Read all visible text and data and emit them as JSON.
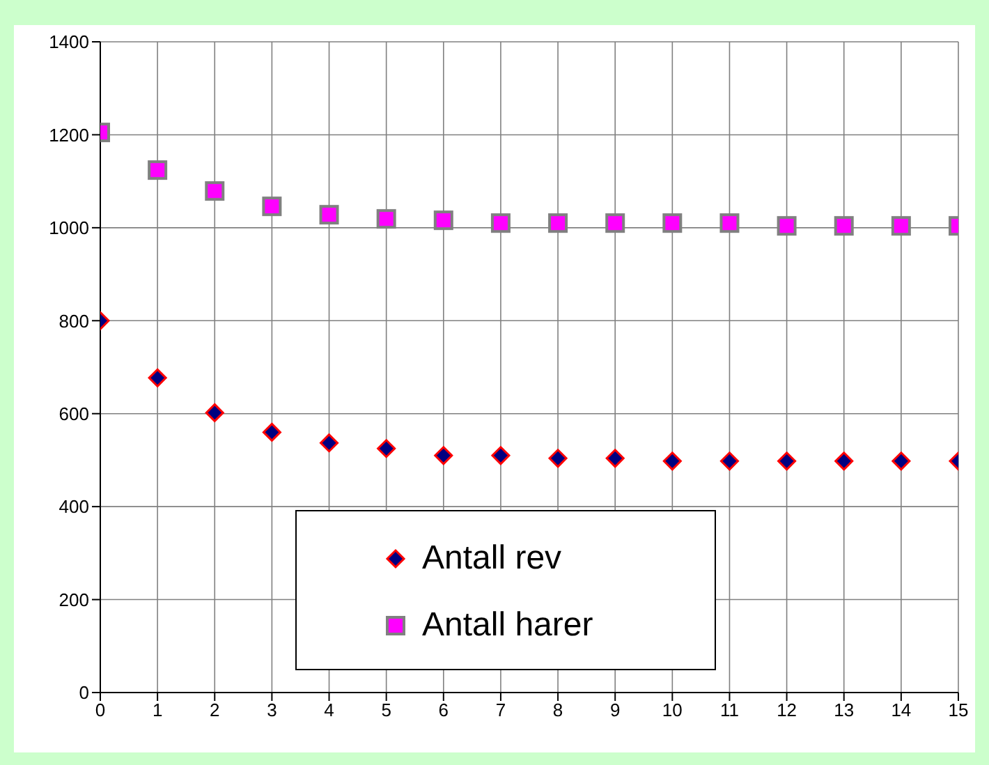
{
  "chart_data": {
    "type": "scatter",
    "x": [
      0,
      1,
      2,
      3,
      4,
      5,
      6,
      7,
      8,
      9,
      10,
      11,
      12,
      13,
      14,
      15
    ],
    "series": [
      {
        "name": "Antall rev",
        "color": "#000080",
        "marker": "diamond",
        "values": [
          800,
          677,
          602,
          560,
          537,
          525,
          510,
          510,
          504,
          504,
          498,
          498,
          498,
          498,
          498,
          498
        ]
      },
      {
        "name": "Antall harer",
        "color": "#ff00ff",
        "marker": "square",
        "values": [
          1205,
          1124,
          1079,
          1046,
          1028,
          1019,
          1016,
          1010,
          1010,
          1010,
          1010,
          1010,
          1004,
          1004,
          1004,
          1004
        ]
      }
    ],
    "xlim": [
      0,
      15
    ],
    "xticks": [
      0,
      1,
      2,
      3,
      4,
      5,
      6,
      7,
      8,
      9,
      10,
      11,
      12,
      13,
      14,
      15
    ],
    "ylim": [
      0,
      1400
    ],
    "yticks": [
      0,
      200,
      400,
      600,
      800,
      1000,
      1200,
      1400
    ],
    "grid": true,
    "legend": "bottom"
  }
}
